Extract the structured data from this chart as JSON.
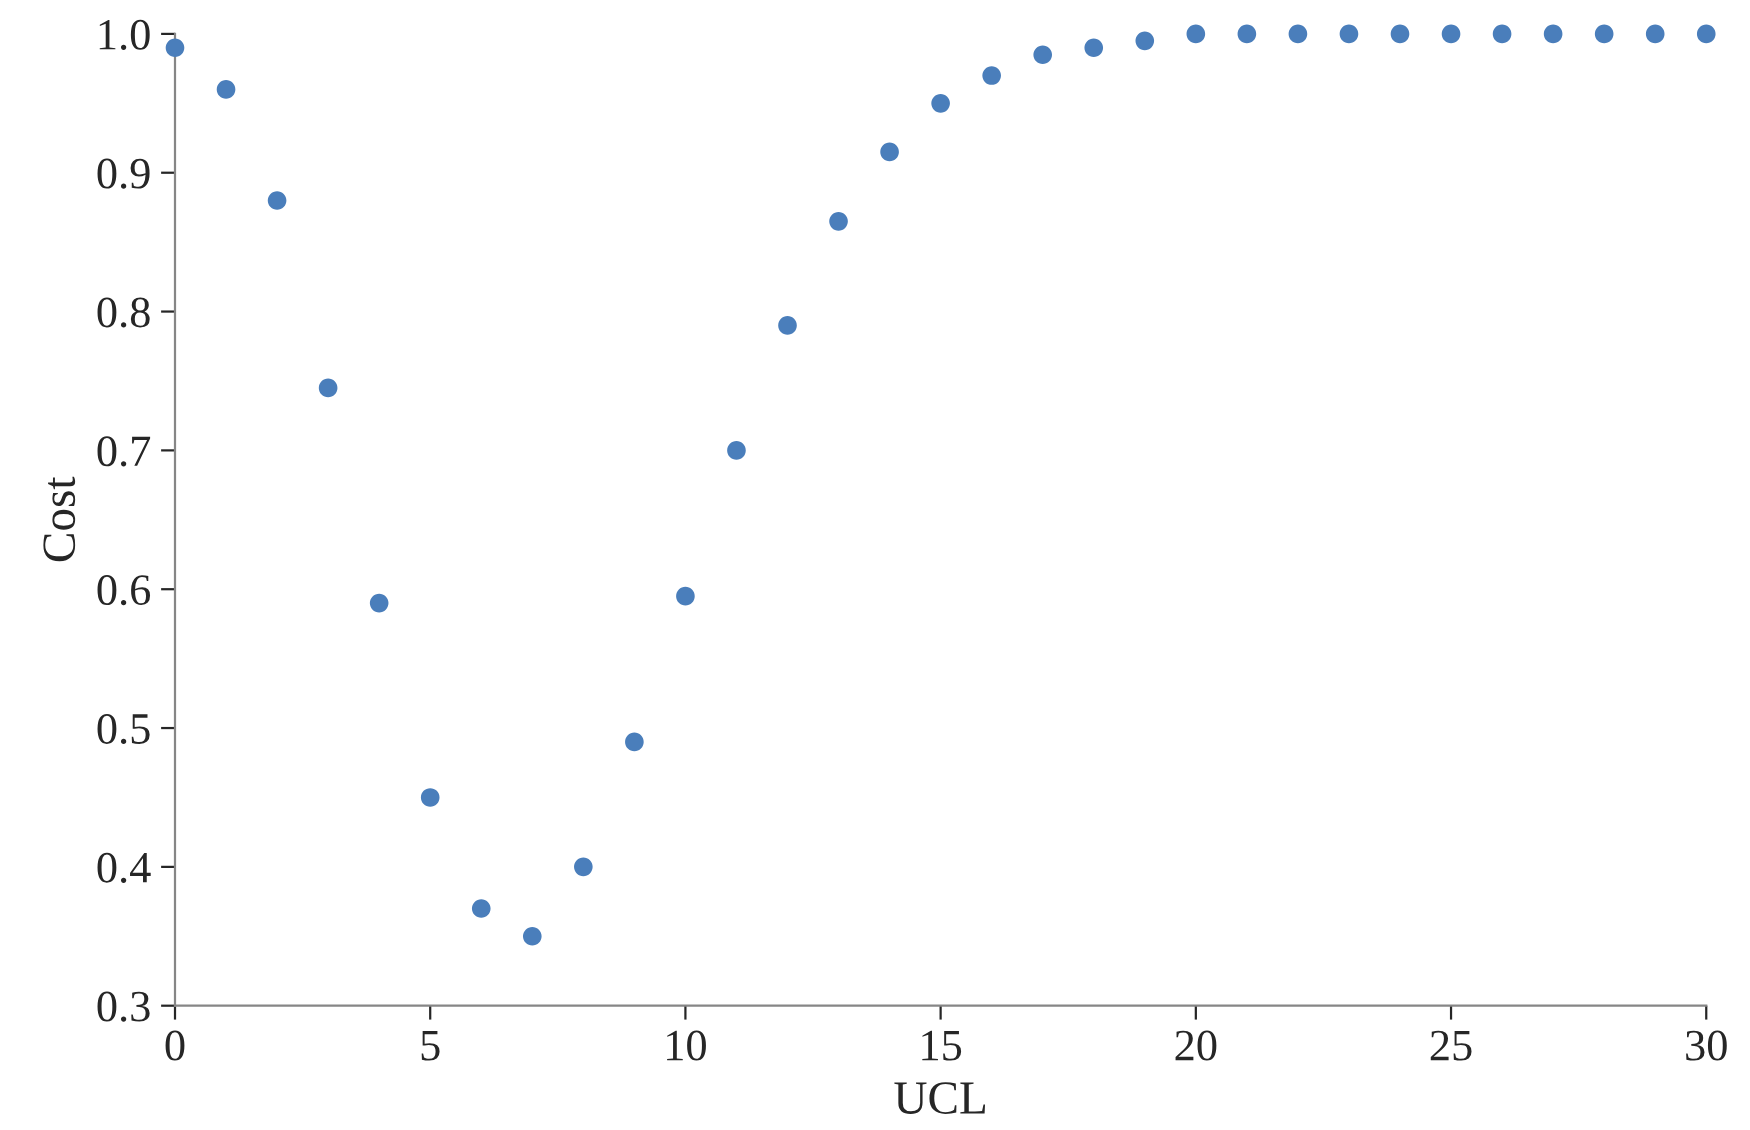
{
  "chart_data": {
    "type": "scatter",
    "xlabel": "UCL",
    "ylabel": "Cost",
    "x": [
      0,
      1,
      2,
      3,
      4,
      5,
      6,
      7,
      8,
      9,
      10,
      11,
      12,
      13,
      14,
      15,
      16,
      17,
      18,
      19,
      20,
      21,
      22,
      23,
      24,
      25,
      26,
      27,
      28,
      29,
      30
    ],
    "series": [
      {
        "color": "#4a7ebb",
        "values": [
          0.99,
          0.96,
          0.88,
          0.745,
          0.59,
          0.45,
          0.37,
          0.35,
          0.4,
          0.49,
          0.595,
          0.7,
          0.79,
          0.865,
          0.915,
          0.95,
          0.97,
          0.985,
          0.99,
          0.995,
          1.0,
          1.0,
          1.0,
          1.0,
          1.0,
          1.0,
          1.0,
          1.0,
          1.0,
          1.0,
          1.0
        ]
      }
    ],
    "xlim": [
      0,
      30
    ],
    "xticks": [
      0,
      5,
      10,
      15,
      20,
      25,
      30
    ],
    "ylim": [
      0.3,
      1.0
    ],
    "yticks": [
      {
        "value": 0.3,
        "label": "0.3"
      },
      {
        "value": 0.4,
        "label": "0.4"
      },
      {
        "value": 0.5,
        "label": "0.5"
      },
      {
        "value": 0.6,
        "label": "0.6"
      },
      {
        "value": 0.7,
        "label": "0.7"
      },
      {
        "value": 0.8,
        "label": "0.8"
      },
      {
        "value": 0.9,
        "label": "0.9"
      },
      {
        "value": 1.0,
        "label": "1.0"
      }
    ],
    "marker": "circle",
    "grid": false,
    "legend": false
  }
}
